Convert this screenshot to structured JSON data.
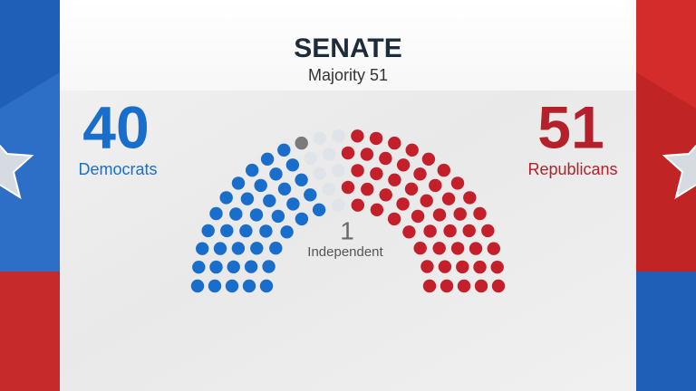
{
  "chart_data": {
    "type": "parliament",
    "title": "SENATE",
    "subtitle": "Majority 51",
    "categories": [
      "Democrats",
      "Independent",
      null,
      "Republicans"
    ],
    "values": [
      40,
      1,
      8,
      51
    ],
    "colors": [
      "#1a6ecb",
      "#7a7a7a",
      "#dfe4ea",
      "#c4202b"
    ]
  }
}
